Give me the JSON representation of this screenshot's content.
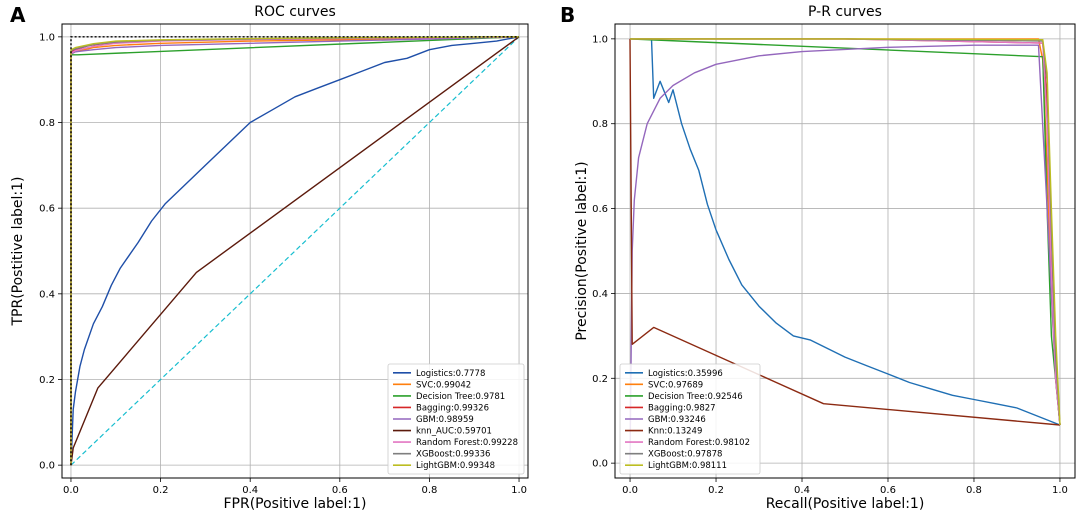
{
  "panels": {
    "left_letter": "A",
    "right_letter": "B"
  },
  "chart_data": [
    {
      "type": "line",
      "title": "ROC curves",
      "xlabel": "FPR(Positive label:1)",
      "ylabel": "TPR(Postitive label:1)",
      "xlim": [
        -0.02,
        1.02
      ],
      "ylim": [
        -0.03,
        1.03
      ],
      "xticks": [
        "0.0",
        "0.2",
        "0.4",
        "0.6",
        "0.8",
        "1.0"
      ],
      "yticks": [
        "0.0",
        "0.2",
        "0.4",
        "0.6",
        "0.8",
        "1.0"
      ],
      "grid": true,
      "legend_position": "lower-right",
      "reference": {
        "diagonal_color": "#17becf",
        "perfect_color": "#000000",
        "perfect_x": [
          0,
          0,
          1
        ],
        "perfect_y": [
          0,
          1,
          1
        ]
      },
      "series": [
        {
          "name": "Logistics:0.7778",
          "color": "#1f4fa8",
          "x": [
            0,
            0.005,
            0.01,
            0.02,
            0.03,
            0.05,
            0.07,
            0.09,
            0.11,
            0.13,
            0.15,
            0.18,
            0.21,
            0.25,
            0.3,
            0.35,
            0.4,
            0.45,
            0.5,
            0.55,
            0.6,
            0.65,
            0.7,
            0.75,
            0.8,
            0.85,
            0.9,
            0.95,
            1.0
          ],
          "y": [
            0,
            0.13,
            0.17,
            0.23,
            0.27,
            0.33,
            0.37,
            0.42,
            0.46,
            0.49,
            0.52,
            0.57,
            0.61,
            0.65,
            0.7,
            0.75,
            0.8,
            0.83,
            0.86,
            0.88,
            0.9,
            0.92,
            0.94,
            0.95,
            0.97,
            0.98,
            0.985,
            0.99,
            1.0
          ]
        },
        {
          "name": "SVC:0.99042",
          "color": "#ff7f0e",
          "x": [
            0,
            0,
            0.01,
            0.05,
            0.1,
            0.2,
            0.4,
            0.6,
            0.8,
            0.95,
            1.0
          ],
          "y": [
            0,
            0.96,
            0.965,
            0.975,
            0.98,
            0.985,
            0.99,
            0.993,
            0.996,
            0.998,
            1.0
          ]
        },
        {
          "name": "Decision Tree:0.9781",
          "color": "#2ca02c",
          "x": [
            0,
            0,
            0.015,
            1.0
          ],
          "y": [
            0,
            0.958,
            0.958,
            1.0
          ]
        },
        {
          "name": "Bagging:0.99326",
          "color": "#d62728",
          "x": [
            0,
            0,
            0.01,
            0.04,
            0.08,
            0.15,
            0.3,
            0.5,
            0.7,
            0.9,
            1.0
          ],
          "y": [
            0,
            0.965,
            0.97,
            0.98,
            0.985,
            0.99,
            0.993,
            0.995,
            0.997,
            0.999,
            1.0
          ]
        },
        {
          "name": "GBM:0.98959",
          "color": "#9467bd",
          "x": [
            0,
            0,
            0.01,
            0.05,
            0.1,
            0.2,
            0.4,
            0.6,
            0.8,
            1.0
          ],
          "y": [
            0,
            0.96,
            0.965,
            0.97,
            0.975,
            0.98,
            0.985,
            0.99,
            0.995,
            1.0
          ]
        },
        {
          "name": "knn_AUC:0.59701",
          "color": "#5c1a0c",
          "x": [
            0,
            0.005,
            0.06,
            0.28,
            1.0
          ],
          "y": [
            0,
            0.04,
            0.18,
            0.45,
            1.0
          ]
        },
        {
          "name": "Random Forest:0.99228",
          "color": "#e377c2",
          "x": [
            0,
            0,
            0.01,
            0.05,
            0.1,
            0.2,
            0.4,
            0.6,
            0.8,
            1.0
          ],
          "y": [
            0,
            0.962,
            0.968,
            0.978,
            0.985,
            0.99,
            0.994,
            0.996,
            0.998,
            1.0
          ]
        },
        {
          "name": "XGBoost:0.99336",
          "color": "#7f7f7f",
          "x": [
            0,
            0,
            0.01,
            0.05,
            0.1,
            0.2,
            0.4,
            0.6,
            0.8,
            1.0
          ],
          "y": [
            0,
            0.968,
            0.972,
            0.982,
            0.988,
            0.992,
            0.995,
            0.997,
            0.999,
            1.0
          ]
        },
        {
          "name": "LightGBM:0.99348",
          "color": "#bcbd22",
          "x": [
            0,
            0,
            0.01,
            0.05,
            0.1,
            0.2,
            0.4,
            0.6,
            0.8,
            1.0
          ],
          "y": [
            0,
            0.97,
            0.975,
            0.984,
            0.99,
            0.993,
            0.996,
            0.998,
            0.999,
            1.0
          ]
        }
      ]
    },
    {
      "type": "line",
      "title": "P-R curves",
      "xlabel": "Recall(Positive label:1)",
      "ylabel": "Precision(Positive label:1)",
      "xlim": [
        -0.035,
        1.035
      ],
      "ylim": [
        -0.035,
        1.035
      ],
      "xticks": [
        "0.0",
        "0.2",
        "0.4",
        "0.6",
        "0.8",
        "1.0"
      ],
      "yticks": [
        "0.0",
        "0.2",
        "0.4",
        "0.6",
        "0.8",
        "1.0"
      ],
      "grid": true,
      "legend_position": "lower-left",
      "series": [
        {
          "name": "Logistics:0.35996",
          "color": "#1f6fb4",
          "x": [
            0,
            0.05,
            0.055,
            0.07,
            0.09,
            0.1,
            0.12,
            0.14,
            0.16,
            0.18,
            0.2,
            0.23,
            0.26,
            0.3,
            0.34,
            0.38,
            0.42,
            0.46,
            0.5,
            0.55,
            0.6,
            0.65,
            0.7,
            0.75,
            0.8,
            0.85,
            0.9,
            0.95,
            1.0
          ],
          "y": [
            1.0,
            1.0,
            0.86,
            0.9,
            0.85,
            0.88,
            0.8,
            0.74,
            0.69,
            0.61,
            0.55,
            0.48,
            0.42,
            0.37,
            0.33,
            0.3,
            0.29,
            0.27,
            0.25,
            0.23,
            0.21,
            0.19,
            0.175,
            0.16,
            0.15,
            0.14,
            0.13,
            0.11,
            0.09
          ]
        },
        {
          "name": "SVC:0.97689",
          "color": "#ff7f0e",
          "x": [
            0,
            0.5,
            0.95,
            0.96,
            0.97,
            0.98,
            0.99,
            1.0
          ],
          "y": [
            1.0,
            1.0,
            1.0,
            0.95,
            0.7,
            0.4,
            0.2,
            0.09
          ]
        },
        {
          "name": "Decision Tree:0.92546",
          "color": "#2ca02c",
          "x": [
            0,
            0.96,
            0.97,
            0.98,
            1.0
          ],
          "y": [
            1.0,
            0.958,
            0.6,
            0.3,
            0.09
          ]
        },
        {
          "name": "Bagging:0.9827",
          "color": "#d62728",
          "x": [
            0,
            0.5,
            0.96,
            0.97,
            0.98,
            0.99,
            1.0
          ],
          "y": [
            1.0,
            1.0,
            0.99,
            0.85,
            0.5,
            0.2,
            0.09
          ]
        },
        {
          "name": "GBM:0.93246",
          "color": "#9467bd",
          "x": [
            0,
            0.005,
            0.01,
            0.02,
            0.04,
            0.07,
            0.1,
            0.15,
            0.2,
            0.3,
            0.4,
            0.6,
            0.8,
            0.95,
            0.97,
            0.99,
            1.0
          ],
          "y": [
            0.0,
            0.5,
            0.62,
            0.72,
            0.8,
            0.86,
            0.89,
            0.92,
            0.94,
            0.96,
            0.97,
            0.98,
            0.985,
            0.985,
            0.6,
            0.2,
            0.09
          ]
        },
        {
          "name": "Knn:0.13249",
          "color": "#8c2a12",
          "x": [
            0.0,
            0.005,
            0.055,
            0.45,
            1.0
          ],
          "y": [
            1.0,
            0.28,
            0.32,
            0.14,
            0.09
          ]
        },
        {
          "name": "Random Forest:0.98102",
          "color": "#e377c2",
          "x": [
            0,
            0.5,
            0.96,
            0.97,
            0.98,
            0.99,
            1.0
          ],
          "y": [
            1.0,
            1.0,
            0.99,
            0.8,
            0.45,
            0.2,
            0.09
          ]
        },
        {
          "name": "XGBoost:0.97878",
          "color": "#7f7f7f",
          "x": [
            0,
            0.5,
            0.96,
            0.97,
            0.98,
            0.99,
            1.0
          ],
          "y": [
            1.0,
            1.0,
            0.995,
            0.9,
            0.55,
            0.25,
            0.09
          ]
        },
        {
          "name": "LightGBM:0.98111",
          "color": "#bcbd22",
          "x": [
            0,
            0.5,
            0.96,
            0.97,
            0.98,
            0.99,
            1.0
          ],
          "y": [
            1.0,
            1.0,
            0.998,
            0.92,
            0.6,
            0.3,
            0.09
          ]
        }
      ]
    }
  ]
}
